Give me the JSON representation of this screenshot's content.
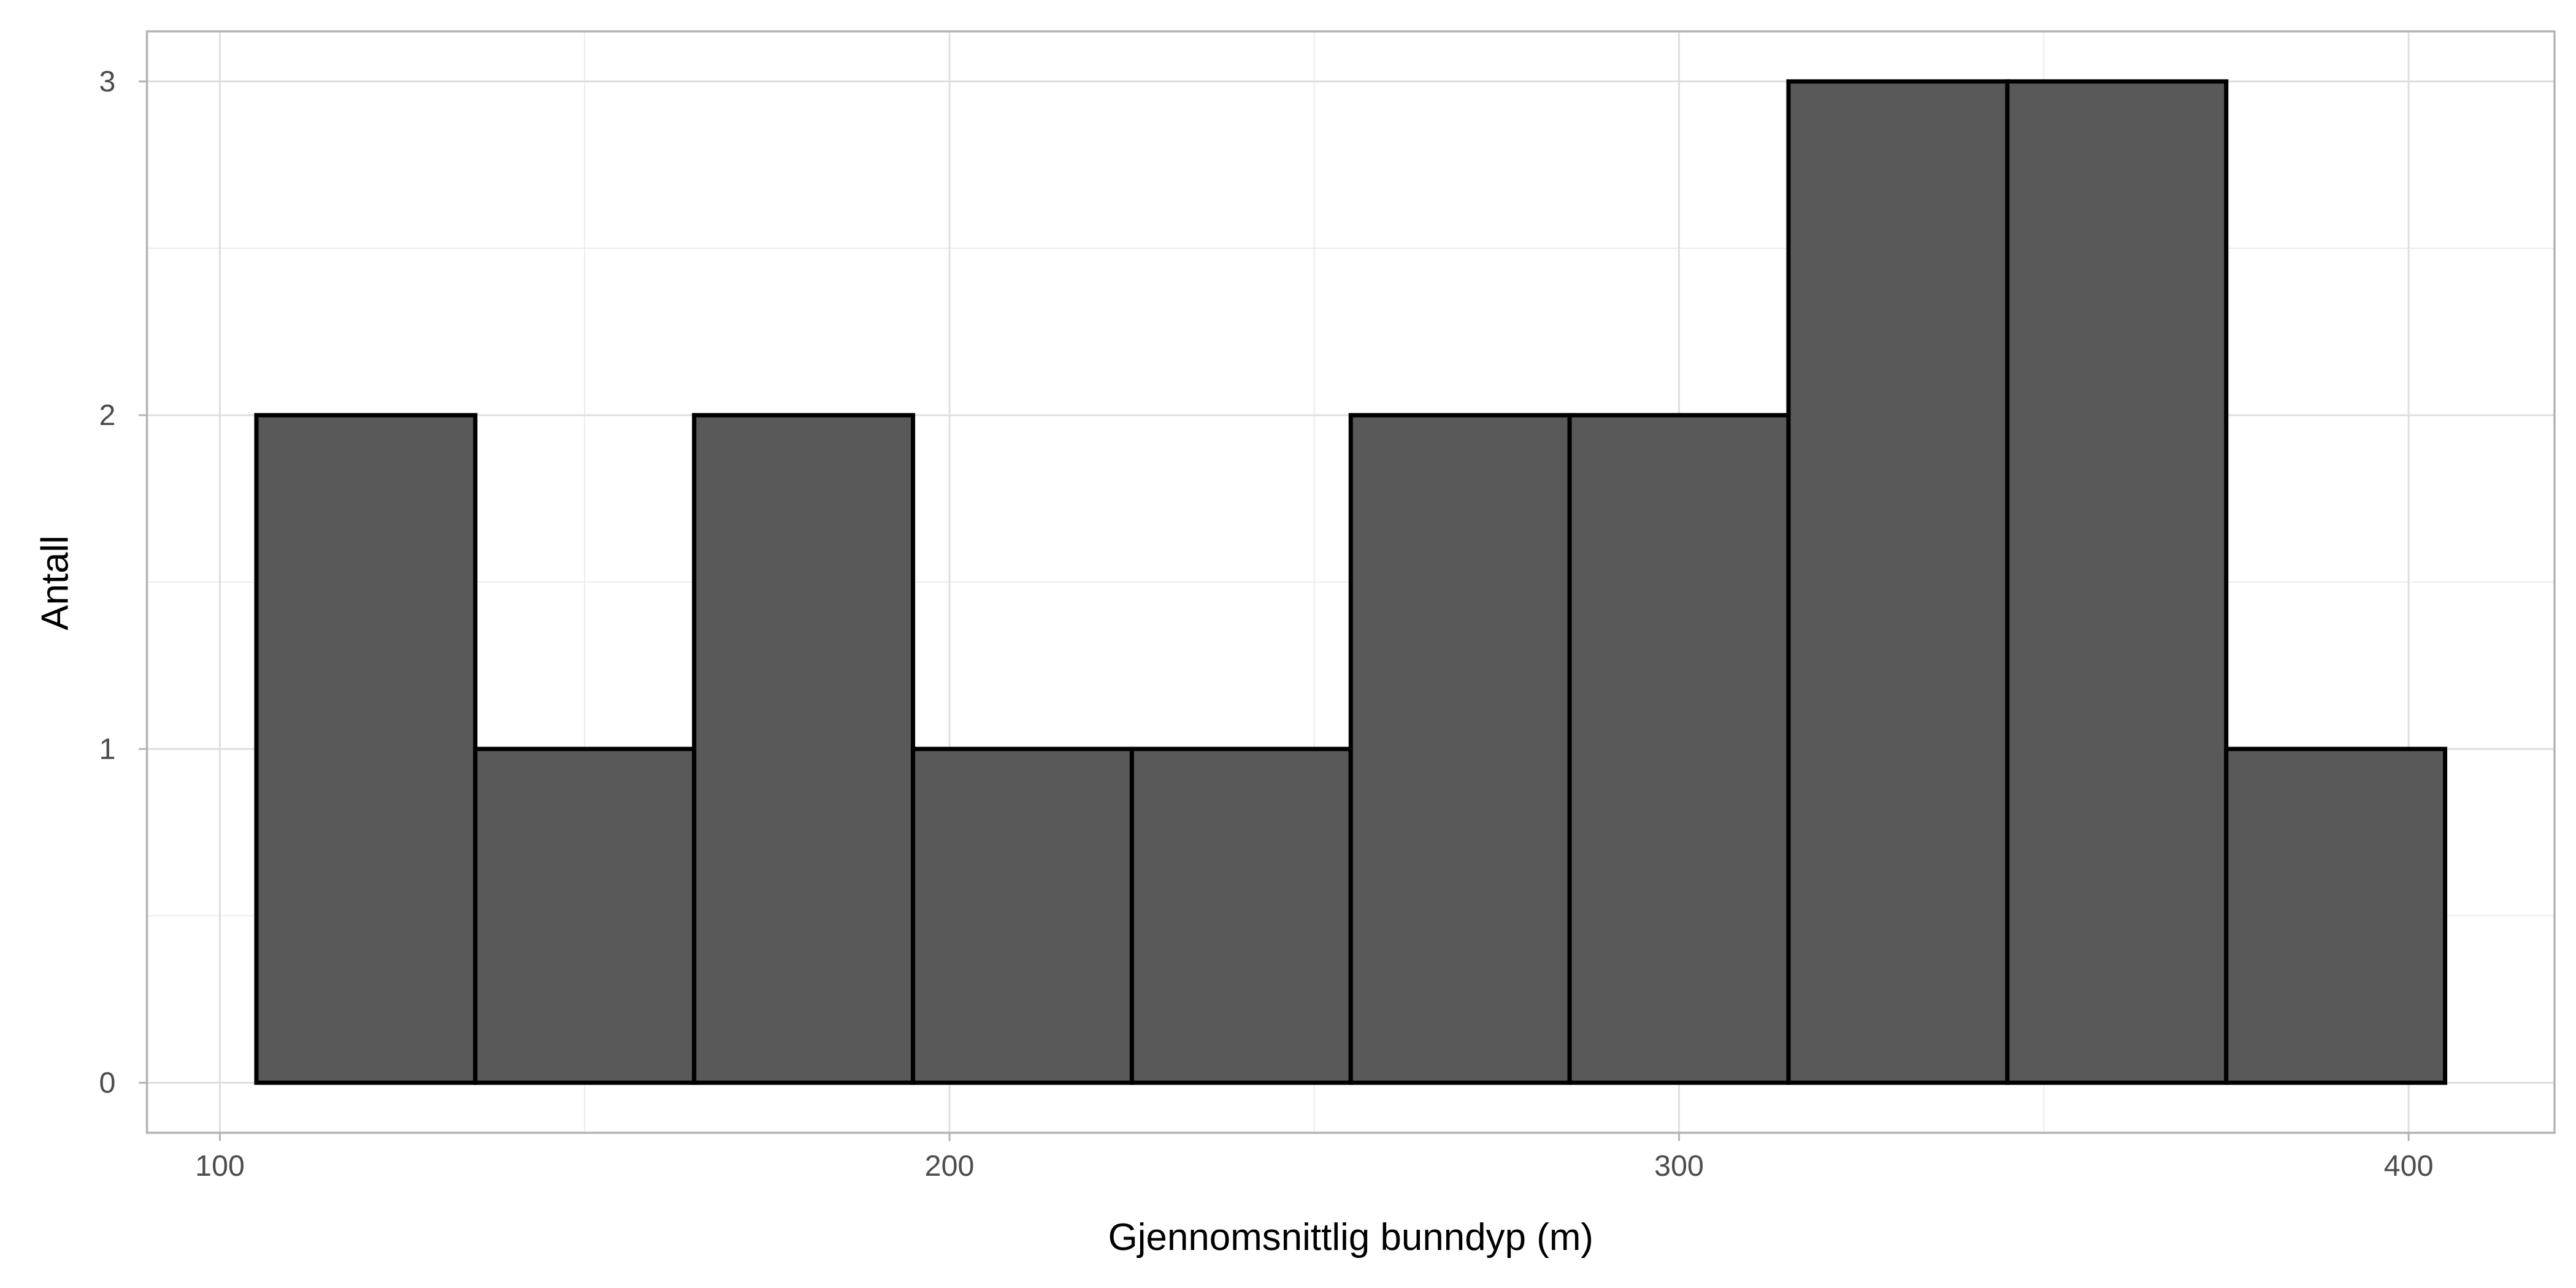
{
  "chart_data": {
    "type": "bar",
    "subtype": "histogram",
    "xlabel": "Gjennomsnittlig bunndyp (m)",
    "ylabel": "Antall",
    "bins": [
      {
        "start": 105,
        "end": 135,
        "count": 2
      },
      {
        "start": 135,
        "end": 165,
        "count": 1
      },
      {
        "start": 165,
        "end": 195,
        "count": 2
      },
      {
        "start": 195,
        "end": 225,
        "count": 1
      },
      {
        "start": 225,
        "end": 255,
        "count": 1
      },
      {
        "start": 255,
        "end": 285,
        "count": 2
      },
      {
        "start": 285,
        "end": 315,
        "count": 2
      },
      {
        "start": 315,
        "end": 345,
        "count": 3
      },
      {
        "start": 345,
        "end": 375,
        "count": 3
      },
      {
        "start": 375,
        "end": 405,
        "count": 1
      }
    ],
    "xlim": [
      90,
      420
    ],
    "ylim": [
      -0.15,
      3.15
    ],
    "xticks": [
      "100",
      "200",
      "300",
      "400"
    ],
    "yticks": [
      "0",
      "1",
      "2",
      "3"
    ],
    "grid": true,
    "bar_fill": "#595959",
    "bar_stroke": "#000000"
  }
}
